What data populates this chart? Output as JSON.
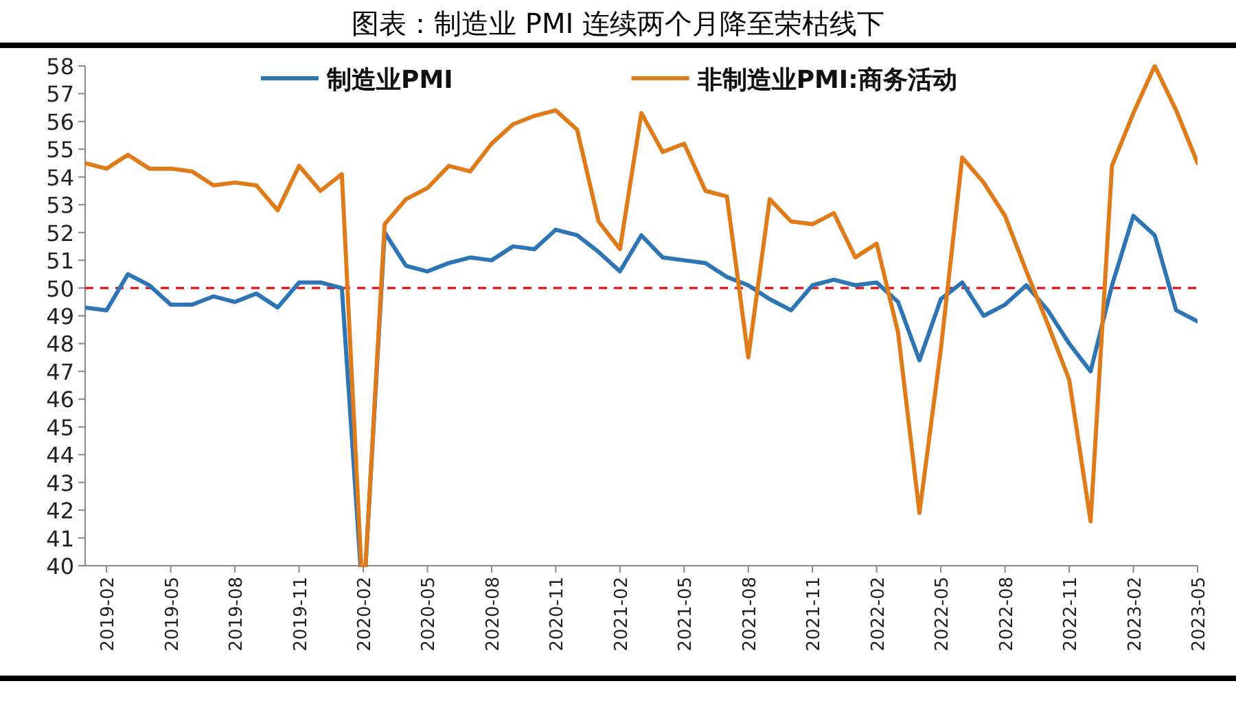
{
  "chart_data": {
    "type": "line",
    "title": "图表：制造业 PMI 连续两个月降至荣枯线下",
    "x": [
      "2019-01",
      "2019-02",
      "2019-03",
      "2019-04",
      "2019-05",
      "2019-06",
      "2019-07",
      "2019-08",
      "2019-09",
      "2019-10",
      "2019-11",
      "2019-12",
      "2020-01",
      "2020-02",
      "2020-03",
      "2020-04",
      "2020-05",
      "2020-06",
      "2020-07",
      "2020-08",
      "2020-09",
      "2020-10",
      "2020-11",
      "2020-12",
      "2021-01",
      "2021-02",
      "2021-03",
      "2021-04",
      "2021-05",
      "2021-06",
      "2021-07",
      "2021-08",
      "2021-09",
      "2021-10",
      "2021-11",
      "2021-12",
      "2022-01",
      "2022-02",
      "2022-03",
      "2022-04",
      "2022-05",
      "2022-06",
      "2022-07",
      "2022-08",
      "2022-09",
      "2022-10",
      "2022-11",
      "2022-12",
      "2023-01",
      "2023-02",
      "2023-03",
      "2023-04",
      "2023-05"
    ],
    "series": [
      {
        "name": "制造业PMI",
        "color": "#2e75b6",
        "values": [
          49.3,
          49.2,
          50.5,
          50.1,
          49.4,
          49.4,
          49.7,
          49.5,
          49.8,
          49.3,
          50.2,
          50.2,
          50.0,
          null,
          52.0,
          50.8,
          50.6,
          50.9,
          51.1,
          51.0,
          51.5,
          51.4,
          52.1,
          51.9,
          51.3,
          50.6,
          51.9,
          51.1,
          51.0,
          50.9,
          50.4,
          50.1,
          49.6,
          49.2,
          50.1,
          50.3,
          50.1,
          50.2,
          49.5,
          47.4,
          49.6,
          50.2,
          49.0,
          49.4,
          50.1,
          49.2,
          48.0,
          47.0,
          50.1,
          52.6,
          51.9,
          49.2,
          48.8
        ]
      },
      {
        "name": "非制造业PMI:商务活动",
        "color": "#e07b1a",
        "values": [
          54.5,
          54.3,
          54.8,
          54.3,
          54.3,
          54.2,
          53.7,
          53.8,
          53.7,
          52.8,
          54.4,
          53.5,
          54.1,
          null,
          52.3,
          53.2,
          53.6,
          54.4,
          54.2,
          55.2,
          55.9,
          56.2,
          56.4,
          55.7,
          52.4,
          51.4,
          56.3,
          54.9,
          55.2,
          53.5,
          53.3,
          47.5,
          53.2,
          52.4,
          52.3,
          52.7,
          51.1,
          51.6,
          48.4,
          41.9,
          47.8,
          54.7,
          53.8,
          52.6,
          50.6,
          48.7,
          46.7,
          41.6,
          54.4,
          56.3,
          58.0,
          56.4,
          54.5
        ]
      }
    ],
    "xlim": [
      "2019-01",
      "2023-05"
    ],
    "xticks": [
      "2019-02",
      "2019-05",
      "2019-08",
      "2019-11",
      "2020-02",
      "2020-05",
      "2020-08",
      "2020-11",
      "2021-02",
      "2021-05",
      "2021-08",
      "2021-11",
      "2022-02",
      "2022-05",
      "2022-08",
      "2022-11",
      "2023-02",
      "2023-05"
    ],
    "ylim": [
      40,
      58
    ],
    "yticks": [
      40,
      41,
      42,
      43,
      44,
      45,
      46,
      47,
      48,
      49,
      50,
      51,
      52,
      53,
      54,
      55,
      56,
      57,
      58
    ],
    "ref_lines": [
      {
        "axis": "y",
        "value": 50,
        "color": "#e02020",
        "line_style": "dashed"
      }
    ],
    "legend": "top",
    "grid": false
  }
}
